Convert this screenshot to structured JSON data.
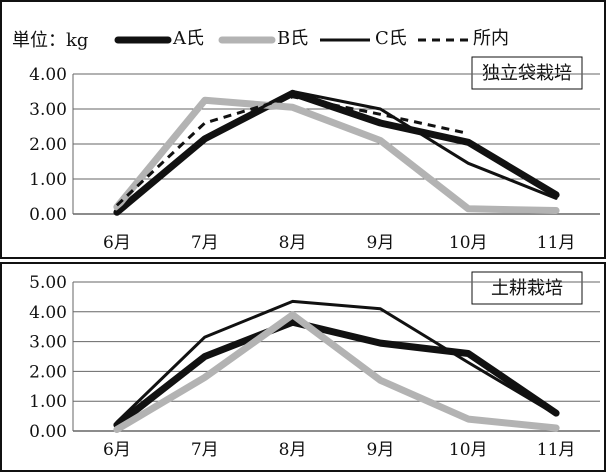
{
  "legend": {
    "unit": "単位：kg",
    "entries": [
      "A氏",
      "B氏",
      "C氏",
      "所内"
    ],
    "styles": {
      "A氏": {
        "color": "#111111",
        "kind": "thick"
      },
      "B氏": {
        "color": "#b3b3b3",
        "kind": "gray"
      },
      "C氏": {
        "color": "#111111",
        "kind": "thin"
      },
      "所内": {
        "color": "#111111",
        "kind": "dashed"
      }
    }
  },
  "chart_data": [
    {
      "type": "line",
      "title": "独立袋栽培",
      "categories": [
        "6月",
        "7月",
        "8月",
        "9月",
        "10月",
        "11月"
      ],
      "ylim": [
        0,
        4
      ],
      "yticks": [
        "0.00",
        "1.00",
        "2.00",
        "3.00",
        "4.00"
      ],
      "grid": true,
      "series": [
        {
          "name": "A氏",
          "values": [
            0.05,
            2.15,
            3.45,
            2.6,
            2.05,
            0.55
          ]
        },
        {
          "name": "B氏",
          "values": [
            0.2,
            3.25,
            3.05,
            2.1,
            0.15,
            0.1
          ]
        },
        {
          "name": "C氏",
          "values": [
            0.05,
            2.2,
            3.5,
            3.0,
            1.45,
            0.45
          ]
        },
        {
          "name": "所内",
          "values": [
            0.25,
            2.6,
            3.35,
            2.85,
            2.3,
            null
          ]
        }
      ]
    },
    {
      "type": "line",
      "title": "土耕栽培",
      "categories": [
        "6月",
        "7月",
        "8月",
        "9月",
        "10月",
        "11月"
      ],
      "ylim": [
        0,
        5
      ],
      "yticks": [
        "0.00",
        "1.00",
        "2.00",
        "3.00",
        "4.00",
        "5.00"
      ],
      "grid": true,
      "series": [
        {
          "name": "A氏",
          "values": [
            0.2,
            2.5,
            3.65,
            2.95,
            2.6,
            0.6
          ]
        },
        {
          "name": "B氏",
          "values": [
            0.05,
            1.8,
            3.9,
            1.7,
            0.4,
            0.1
          ]
        },
        {
          "name": "C氏",
          "values": [
            0.3,
            3.15,
            4.35,
            4.1,
            2.3,
            0.55
          ]
        }
      ]
    }
  ]
}
